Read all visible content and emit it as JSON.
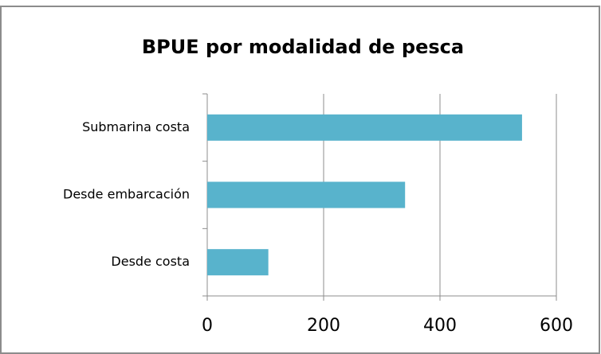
{
  "chart_data": {
    "type": "bar",
    "orientation": "horizontal",
    "title": "BPUE por modalidad de pesca",
    "categories": [
      "Submarina costa",
      "Desde embarcación",
      "Desde costa"
    ],
    "values": [
      541,
      340,
      105
    ],
    "color": "#58b3cc",
    "xlim": [
      0,
      600
    ],
    "xticks": [
      0,
      200,
      400,
      600
    ],
    "grid": true
  }
}
